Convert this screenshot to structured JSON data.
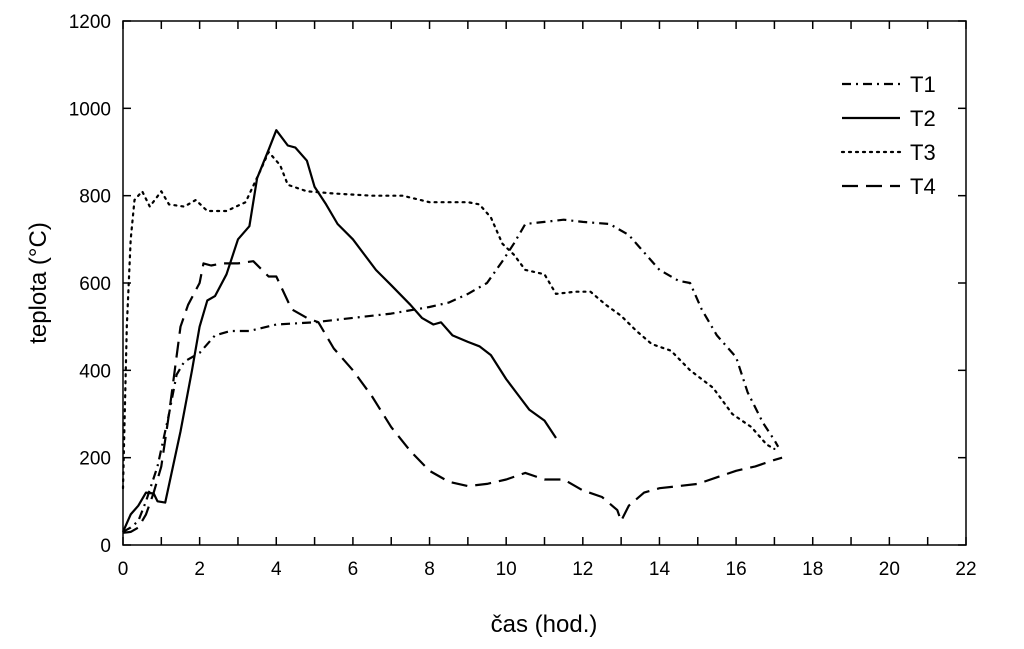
{
  "chart_data": {
    "type": "line",
    "title": "",
    "xlabel": "čas (hod.)",
    "ylabel": "teplota (°C)",
    "xlim": [
      0,
      22
    ],
    "ylim": [
      0,
      1200
    ],
    "xticks": [
      0,
      2,
      4,
      6,
      8,
      10,
      12,
      14,
      16,
      18,
      20,
      22
    ],
    "yticks": [
      0,
      200,
      400,
      600,
      800,
      1000,
      1200
    ],
    "grid": false,
    "legend_position": "top-right",
    "colors": {
      "line": "#000000"
    },
    "series": [
      {
        "name": "T1",
        "style": "dash-dot",
        "points": [
          [
            0,
            30
          ],
          [
            0.2,
            40
          ],
          [
            0.4,
            55
          ],
          [
            0.6,
            100
          ],
          [
            0.9,
            180
          ],
          [
            1.2,
            300
          ],
          [
            1.4,
            390
          ],
          [
            1.6,
            420
          ],
          [
            2.0,
            440
          ],
          [
            2.4,
            480
          ],
          [
            2.8,
            490
          ],
          [
            3.3,
            490
          ],
          [
            4.0,
            505
          ],
          [
            5.0,
            510
          ],
          [
            6.0,
            520
          ],
          [
            7.0,
            530
          ],
          [
            8.0,
            545
          ],
          [
            8.5,
            555
          ],
          [
            9.0,
            575
          ],
          [
            9.5,
            600
          ],
          [
            9.9,
            650
          ],
          [
            10.2,
            690
          ],
          [
            10.5,
            735
          ],
          [
            11.0,
            740
          ],
          [
            11.5,
            745
          ],
          [
            12.0,
            740
          ],
          [
            12.7,
            735
          ],
          [
            13.2,
            710
          ],
          [
            13.5,
            680
          ],
          [
            14.0,
            630
          ],
          [
            14.5,
            605
          ],
          [
            14.8,
            600
          ],
          [
            15.1,
            540
          ],
          [
            15.5,
            480
          ],
          [
            16.0,
            430
          ],
          [
            16.3,
            350
          ],
          [
            16.7,
            280
          ],
          [
            17.0,
            240
          ],
          [
            17.1,
            225
          ]
        ]
      },
      {
        "name": "T2",
        "style": "solid",
        "points": [
          [
            0,
            30
          ],
          [
            0.2,
            70
          ],
          [
            0.4,
            90
          ],
          [
            0.6,
            120
          ],
          [
            0.8,
            118
          ],
          [
            0.9,
            100
          ],
          [
            1.1,
            97
          ],
          [
            1.5,
            260
          ],
          [
            1.8,
            400
          ],
          [
            2.0,
            500
          ],
          [
            2.2,
            560
          ],
          [
            2.4,
            570
          ],
          [
            2.7,
            620
          ],
          [
            3.0,
            700
          ],
          [
            3.3,
            730
          ],
          [
            3.5,
            840
          ],
          [
            3.8,
            905
          ],
          [
            4.0,
            950
          ],
          [
            4.3,
            915
          ],
          [
            4.5,
            910
          ],
          [
            4.8,
            880
          ],
          [
            5.0,
            820
          ],
          [
            5.3,
            780
          ],
          [
            5.6,
            735
          ],
          [
            6.0,
            700
          ],
          [
            6.3,
            665
          ],
          [
            6.6,
            630
          ],
          [
            7.0,
            595
          ],
          [
            7.5,
            550
          ],
          [
            7.8,
            520
          ],
          [
            8.1,
            505
          ],
          [
            8.3,
            510
          ],
          [
            8.6,
            480
          ],
          [
            9.0,
            465
          ],
          [
            9.3,
            455
          ],
          [
            9.6,
            435
          ],
          [
            10.0,
            380
          ],
          [
            10.3,
            345
          ],
          [
            10.6,
            310
          ],
          [
            11.0,
            285
          ],
          [
            11.3,
            245
          ]
        ]
      },
      {
        "name": "T3",
        "style": "dotted",
        "points": [
          [
            0,
            130
          ],
          [
            0.1,
            500
          ],
          [
            0.2,
            700
          ],
          [
            0.3,
            790
          ],
          [
            0.5,
            810
          ],
          [
            0.7,
            775
          ],
          [
            1.0,
            810
          ],
          [
            1.2,
            780
          ],
          [
            1.6,
            775
          ],
          [
            1.9,
            790
          ],
          [
            2.2,
            765
          ],
          [
            2.7,
            765
          ],
          [
            3.2,
            785
          ],
          [
            3.6,
            860
          ],
          [
            3.8,
            900
          ],
          [
            4.1,
            870
          ],
          [
            4.3,
            825
          ],
          [
            4.8,
            810
          ],
          [
            5.5,
            805
          ],
          [
            6.5,
            800
          ],
          [
            7.3,
            800
          ],
          [
            8.0,
            785
          ],
          [
            9.0,
            785
          ],
          [
            9.3,
            780
          ],
          [
            9.6,
            750
          ],
          [
            9.9,
            690
          ],
          [
            10.2,
            665
          ],
          [
            10.5,
            630
          ],
          [
            11.0,
            620
          ],
          [
            11.3,
            575
          ],
          [
            11.8,
            580
          ],
          [
            12.2,
            580
          ],
          [
            12.6,
            550
          ],
          [
            13.0,
            525
          ],
          [
            13.4,
            490
          ],
          [
            13.8,
            460
          ],
          [
            14.3,
            445
          ],
          [
            14.8,
            400
          ],
          [
            15.4,
            360
          ],
          [
            15.9,
            300
          ],
          [
            16.4,
            270
          ],
          [
            16.8,
            230
          ],
          [
            17.0,
            220
          ]
        ]
      },
      {
        "name": "T4",
        "style": "long-dash",
        "points": [
          [
            0,
            28
          ],
          [
            0.2,
            30
          ],
          [
            0.4,
            40
          ],
          [
            0.6,
            70
          ],
          [
            0.8,
            120
          ],
          [
            1.0,
            180
          ],
          [
            1.2,
            300
          ],
          [
            1.5,
            500
          ],
          [
            1.7,
            550
          ],
          [
            2.0,
            600
          ],
          [
            2.1,
            645
          ],
          [
            2.3,
            640
          ],
          [
            2.6,
            645
          ],
          [
            3.0,
            645
          ],
          [
            3.4,
            650
          ],
          [
            3.8,
            615
          ],
          [
            4.0,
            615
          ],
          [
            4.4,
            540
          ],
          [
            4.8,
            520
          ],
          [
            5.1,
            510
          ],
          [
            5.5,
            450
          ],
          [
            6.0,
            400
          ],
          [
            6.5,
            340
          ],
          [
            7.0,
            270
          ],
          [
            7.5,
            215
          ],
          [
            8.0,
            170
          ],
          [
            8.5,
            145
          ],
          [
            9.0,
            135
          ],
          [
            9.5,
            140
          ],
          [
            10.0,
            150
          ],
          [
            10.5,
            165
          ],
          [
            11.0,
            150
          ],
          [
            11.5,
            150
          ],
          [
            12.0,
            125
          ],
          [
            12.5,
            110
          ],
          [
            12.9,
            80
          ],
          [
            13.0,
            55
          ],
          [
            13.2,
            90
          ],
          [
            13.6,
            120
          ],
          [
            14.0,
            130
          ],
          [
            14.5,
            135
          ],
          [
            15.0,
            140
          ],
          [
            15.5,
            155
          ],
          [
            16.0,
            170
          ],
          [
            16.5,
            180
          ],
          [
            17.0,
            195
          ],
          [
            17.2,
            200
          ]
        ]
      }
    ]
  }
}
